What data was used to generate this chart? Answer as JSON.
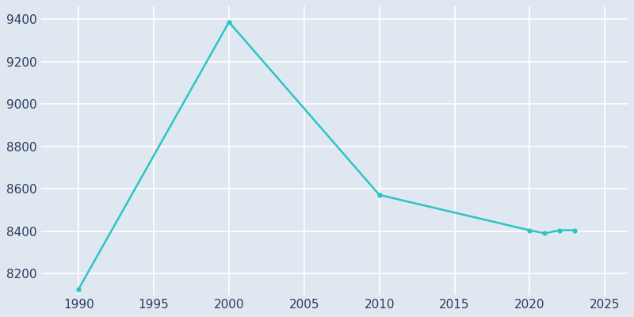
{
  "years": [
    1990,
    2000,
    2010,
    2020,
    2021,
    2022,
    2023
  ],
  "population": [
    8127,
    9387,
    8571,
    8404,
    8390,
    8404,
    8404
  ],
  "line_color": "#2ec4c4",
  "marker": "o",
  "marker_size": 3.5,
  "line_width": 1.8,
  "background_color": "#dfe8f0",
  "plot_background_color": "#dfe8f0",
  "grid_color": "#ffffff",
  "tick_label_color": "#2d3a5e",
  "tick_label_size": 11,
  "xlim": [
    1987.5,
    2026.5
  ],
  "ylim": [
    8100,
    9460
  ],
  "xticks": [
    1990,
    1995,
    2000,
    2005,
    2010,
    2015,
    2020,
    2025
  ],
  "yticks": [
    8200,
    8400,
    8600,
    8800,
    9000,
    9200,
    9400
  ]
}
